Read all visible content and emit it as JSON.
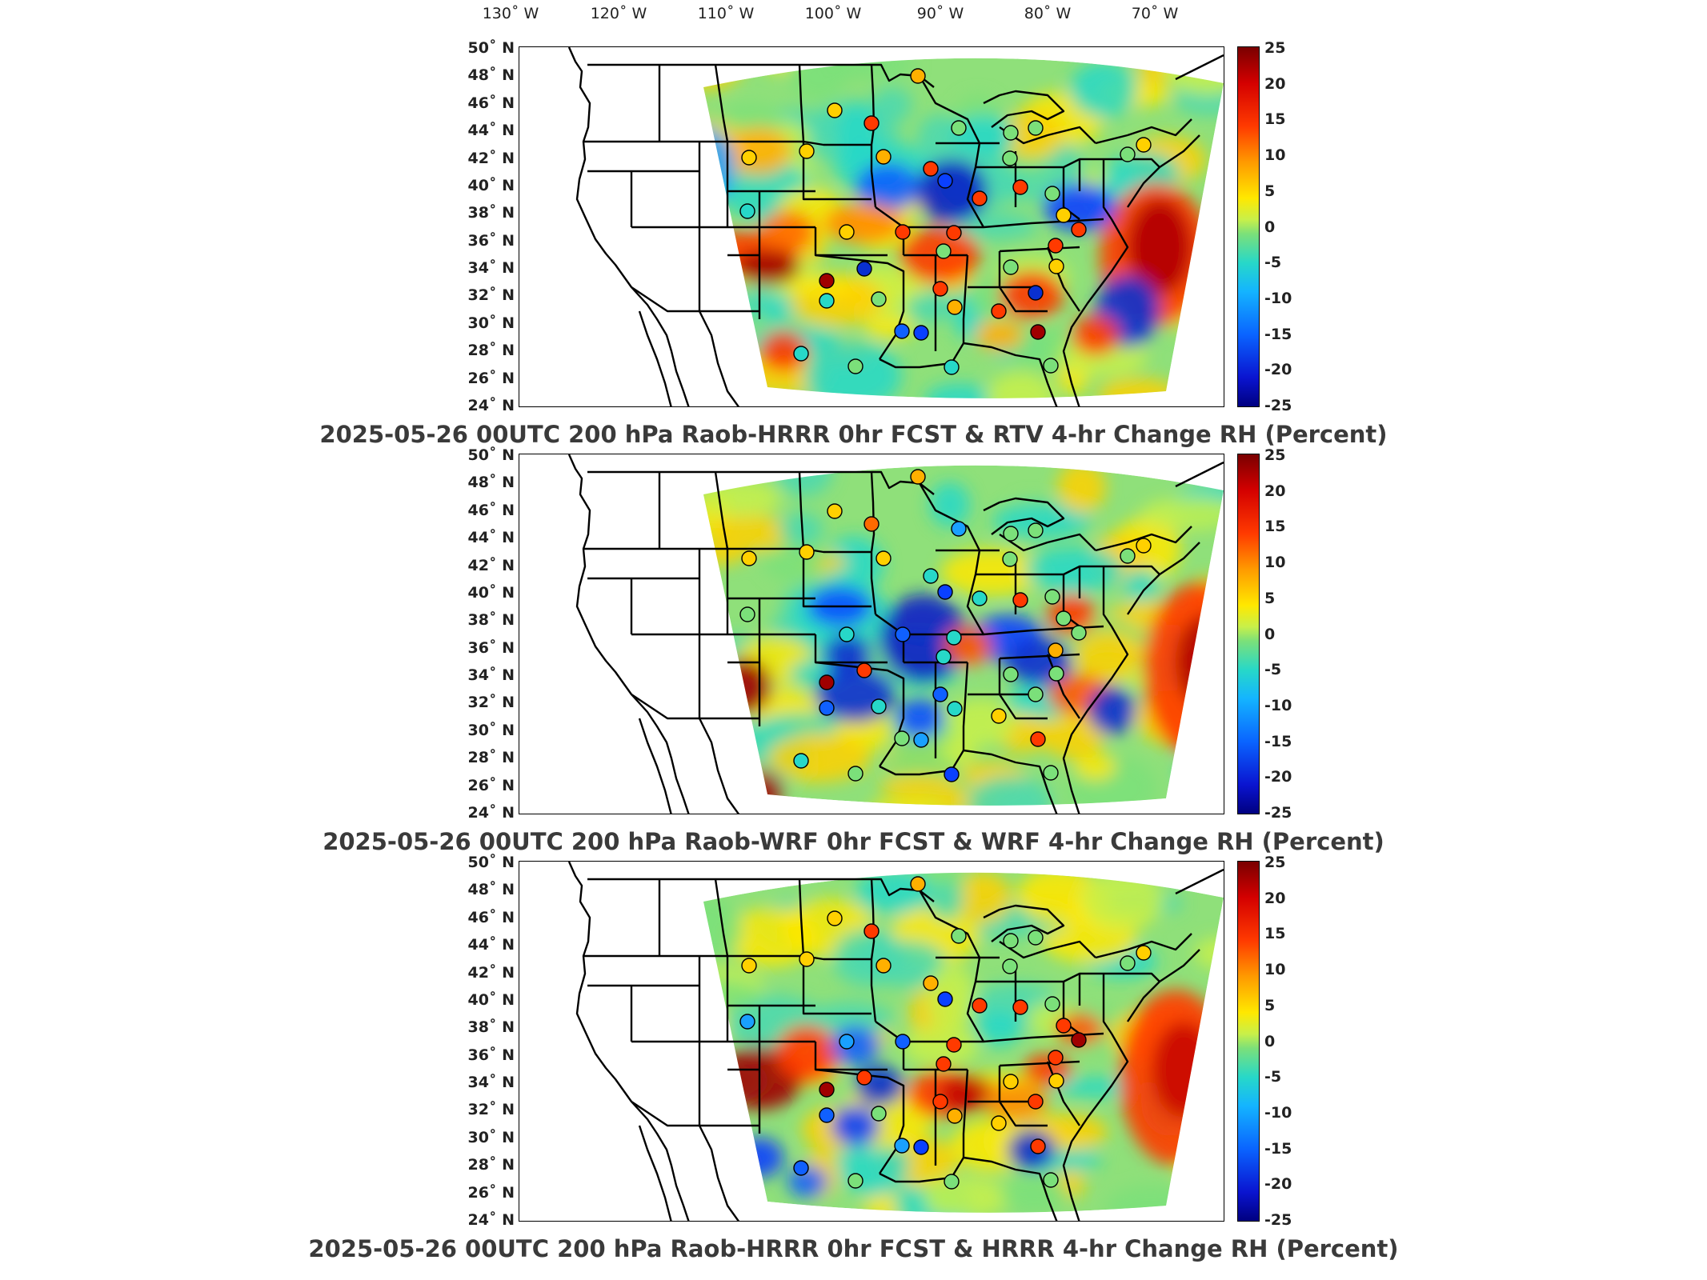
{
  "lon_labels": [
    "130˚ W",
    "120˚ W",
    "110˚ W",
    "100˚ W",
    "90˚ W",
    "80˚ W",
    "70˚ W"
  ],
  "lat_labels": [
    "50˚ N",
    "48˚ N",
    "46˚ N",
    "44˚ N",
    "42˚ N",
    "40˚ N",
    "38˚ N",
    "36˚ N",
    "34˚ N",
    "32˚ N",
    "30˚ N",
    "28˚ N",
    "26˚ N",
    "24˚ N"
  ],
  "colorbar": {
    "ticks": [
      "25",
      "20",
      "15",
      "10",
      "5",
      "0",
      "-5",
      "-10",
      "-15",
      "-20",
      "-25"
    ],
    "range": [
      -25,
      25
    ],
    "colors": [
      "#000080",
      "#0a14d0",
      "#0a64ff",
      "#14b4ff",
      "#27d8c8",
      "#7be07a",
      "#ffe800",
      "#ff9a00",
      "#ff3a00",
      "#d40000",
      "#7a0000"
    ]
  },
  "panels": [
    {
      "title": "2025-05-26 00UTC 200 hPa Raob-HRRR 0hr FCST & RTV 4-hr Change RH (Percent)"
    },
    {
      "title": "2025-05-26 00UTC 200 hPa Raob-WRF 0hr FCST & WRF 4-hr Change RH (Percent)"
    },
    {
      "title": "2025-05-26 00UTC 200 hPa Raob-HRRR 0hr FCST & HRRR 4-hr Change RH (Percent)"
    }
  ]
}
